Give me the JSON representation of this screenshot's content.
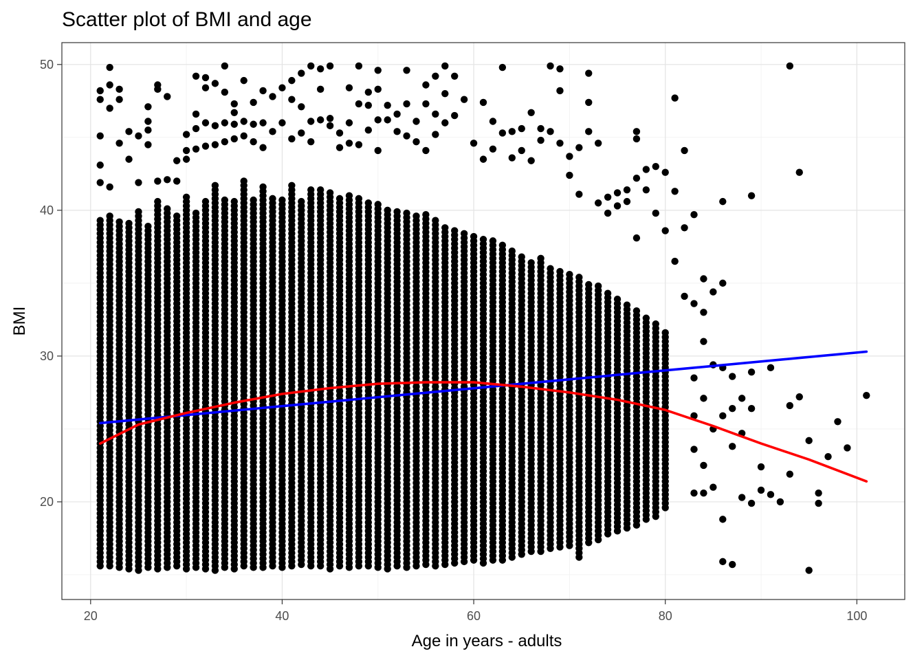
{
  "chart_data": {
    "type": "scatter",
    "title": "Scatter plot of BMI and age",
    "xlabel": "Age in years - adults",
    "ylabel": "BMI",
    "xlim": [
      17,
      105
    ],
    "ylim": [
      13.3,
      51.5
    ],
    "xticks": [
      20,
      40,
      60,
      80,
      100
    ],
    "yticks": [
      20,
      30,
      40,
      50
    ],
    "grid": true,
    "legend": "none",
    "point_color": "#000000",
    "dense_region": {
      "x_values": [
        21,
        22,
        23,
        24,
        25,
        26,
        27,
        28,
        29,
        30,
        31,
        32,
        33,
        34,
        35,
        36,
        37,
        38,
        39,
        40,
        41,
        42,
        43,
        44,
        45,
        46,
        47,
        48,
        49,
        50,
        51,
        52,
        53,
        54,
        55,
        56,
        57,
        58,
        59,
        60,
        61,
        62,
        63,
        64,
        65,
        66,
        67,
        68,
        69,
        70,
        71,
        72,
        73,
        74,
        75,
        76,
        77,
        78,
        79,
        80
      ],
      "y_low": [
        15.6,
        15.6,
        15.5,
        15.4,
        15.3,
        15.5,
        15.4,
        15.5,
        15.6,
        15.4,
        15.5,
        15.4,
        15.3,
        15.5,
        15.4,
        15.6,
        15.5,
        15.5,
        15.6,
        15.5,
        15.6,
        15.7,
        15.6,
        15.6,
        15.4,
        15.6,
        15.5,
        15.6,
        15.6,
        15.5,
        15.4,
        15.6,
        15.5,
        15.6,
        15.7,
        15.6,
        15.7,
        15.8,
        15.9,
        16.0,
        15.8,
        16.0,
        16.0,
        16.2,
        16.4,
        16.6,
        16.6,
        16.8,
        16.9,
        17.0,
        16.2,
        17.2,
        17.4,
        17.8,
        18.0,
        18.2,
        18.4,
        18.8,
        19.0,
        19.6
      ],
      "y_high": [
        39.5,
        39.6,
        39.2,
        39.2,
        40.0,
        39.0,
        40.6,
        40.3,
        39.7,
        41.0,
        40.0,
        40.6,
        41.8,
        40.8,
        40.8,
        42.0,
        40.8,
        41.6,
        41.0,
        40.8,
        41.8,
        40.8,
        41.6,
        41.4,
        41.2,
        41.0,
        41.2,
        40.8,
        40.6,
        40.4,
        40.2,
        40.0,
        39.8,
        39.6,
        39.8,
        39.4,
        39.0,
        38.8,
        38.6,
        38.4,
        38.2,
        38.0,
        37.8,
        37.4,
        37.0,
        36.6,
        36.8,
        36.2,
        36.0,
        35.8,
        35.4,
        35.0,
        34.8,
        34.4,
        34.0,
        33.6,
        33.2,
        32.8,
        32.2,
        31.6
      ],
      "y_step": 0.3
    },
    "points": [
      [
        21,
        48.2
      ],
      [
        21,
        47.6
      ],
      [
        21,
        45.1
      ],
      [
        21,
        43.1
      ],
      [
        21,
        41.9
      ],
      [
        22,
        49.8
      ],
      [
        22,
        48.6
      ],
      [
        22,
        47.0
      ],
      [
        22,
        41.6
      ],
      [
        23,
        48.3
      ],
      [
        23,
        47.6
      ],
      [
        23,
        44.6
      ],
      [
        24,
        45.4
      ],
      [
        24,
        43.5
      ],
      [
        25,
        45.1
      ],
      [
        25,
        41.9
      ],
      [
        26,
        47.1
      ],
      [
        26,
        46.1
      ],
      [
        26,
        45.5
      ],
      [
        26,
        44.5
      ],
      [
        27,
        48.6
      ],
      [
        27,
        48.3
      ],
      [
        27,
        42.0
      ],
      [
        28,
        47.8
      ],
      [
        28,
        42.1
      ],
      [
        29,
        43.4
      ],
      [
        29,
        42.0
      ],
      [
        30,
        45.2
      ],
      [
        30,
        44.1
      ],
      [
        30,
        43.5
      ],
      [
        31,
        49.2
      ],
      [
        31,
        46.6
      ],
      [
        31,
        45.6
      ],
      [
        31,
        44.2
      ],
      [
        32,
        49.1
      ],
      [
        32,
        48.4
      ],
      [
        32,
        46.0
      ],
      [
        32,
        44.4
      ],
      [
        33,
        48.7
      ],
      [
        33,
        45.8
      ],
      [
        33,
        44.5
      ],
      [
        34,
        49.9
      ],
      [
        34,
        48.1
      ],
      [
        34,
        46.0
      ],
      [
        34,
        44.7
      ],
      [
        35,
        47.3
      ],
      [
        35,
        46.7
      ],
      [
        35,
        45.9
      ],
      [
        35,
        44.9
      ],
      [
        36,
        48.9
      ],
      [
        36,
        46.1
      ],
      [
        36,
        45.1
      ],
      [
        37,
        47.4
      ],
      [
        37,
        45.9
      ],
      [
        37,
        44.7
      ],
      [
        38,
        48.2
      ],
      [
        38,
        46.0
      ],
      [
        38,
        44.3
      ],
      [
        39,
        47.8
      ],
      [
        39,
        45.4
      ],
      [
        40,
        48.4
      ],
      [
        40,
        46.0
      ],
      [
        41,
        48.9
      ],
      [
        41,
        47.6
      ],
      [
        41,
        44.9
      ],
      [
        42,
        49.4
      ],
      [
        42,
        47.1
      ],
      [
        42,
        45.3
      ],
      [
        43,
        49.9
      ],
      [
        43,
        46.1
      ],
      [
        43,
        44.7
      ],
      [
        44,
        49.7
      ],
      [
        44,
        48.3
      ],
      [
        44,
        46.2
      ],
      [
        45,
        49.9
      ],
      [
        45,
        46.3
      ],
      [
        45,
        45.8
      ],
      [
        46,
        45.3
      ],
      [
        46,
        44.3
      ],
      [
        47,
        48.4
      ],
      [
        47,
        46.0
      ],
      [
        47,
        44.6
      ],
      [
        48,
        49.9
      ],
      [
        48,
        47.3
      ],
      [
        48,
        44.5
      ],
      [
        49,
        48.1
      ],
      [
        49,
        47.2
      ],
      [
        49,
        45.5
      ],
      [
        50,
        49.6
      ],
      [
        50,
        48.3
      ],
      [
        50,
        46.2
      ],
      [
        50,
        44.1
      ],
      [
        51,
        47.2
      ],
      [
        51,
        46.2
      ],
      [
        52,
        46.6
      ],
      [
        52,
        45.4
      ],
      [
        53,
        49.6
      ],
      [
        53,
        47.3
      ],
      [
        53,
        45.1
      ],
      [
        54,
        46.1
      ],
      [
        54,
        44.7
      ],
      [
        55,
        48.6
      ],
      [
        55,
        47.3
      ],
      [
        55,
        44.1
      ],
      [
        56,
        49.2
      ],
      [
        56,
        46.6
      ],
      [
        56,
        45.2
      ],
      [
        57,
        49.9
      ],
      [
        57,
        48.0
      ],
      [
        57,
        46.0
      ],
      [
        58,
        49.2
      ],
      [
        58,
        46.5
      ],
      [
        59,
        47.6
      ],
      [
        60,
        44.6
      ],
      [
        61,
        47.4
      ],
      [
        61,
        43.5
      ],
      [
        62,
        46.1
      ],
      [
        62,
        44.2
      ],
      [
        63,
        49.8
      ],
      [
        63,
        45.3
      ],
      [
        64,
        45.4
      ],
      [
        64,
        43.6
      ],
      [
        65,
        45.6
      ],
      [
        65,
        44.1
      ],
      [
        66,
        46.7
      ],
      [
        66,
        43.4
      ],
      [
        67,
        45.6
      ],
      [
        67,
        44.8
      ],
      [
        68,
        49.9
      ],
      [
        68,
        45.4
      ],
      [
        69,
        49.7
      ],
      [
        69,
        48.2
      ],
      [
        69,
        44.6
      ],
      [
        70,
        43.7
      ],
      [
        70,
        42.4
      ],
      [
        71,
        44.3
      ],
      [
        71,
        41.1
      ],
      [
        72,
        49.4
      ],
      [
        72,
        47.4
      ],
      [
        72,
        45.4
      ],
      [
        73,
        44.6
      ],
      [
        73,
        40.5
      ],
      [
        74,
        40.9
      ],
      [
        74,
        39.8
      ],
      [
        75,
        41.2
      ],
      [
        75,
        40.3
      ],
      [
        76,
        41.4
      ],
      [
        76,
        40.6
      ],
      [
        77,
        45.4
      ],
      [
        77,
        44.9
      ],
      [
        77,
        42.2
      ],
      [
        77,
        38.1
      ],
      [
        78,
        42.8
      ],
      [
        78,
        41.4
      ],
      [
        79,
        43.0
      ],
      [
        79,
        39.8
      ],
      [
        80,
        42.6
      ],
      [
        80,
        38.6
      ],
      [
        81,
        47.7
      ],
      [
        81,
        41.3
      ],
      [
        81,
        36.5
      ],
      [
        82,
        44.1
      ],
      [
        82,
        38.8
      ],
      [
        82,
        34.1
      ],
      [
        83,
        39.7
      ],
      [
        83,
        33.6
      ],
      [
        83,
        28.5
      ],
      [
        83,
        25.9
      ],
      [
        83,
        23.6
      ],
      [
        83,
        20.6
      ],
      [
        84,
        35.3
      ],
      [
        84,
        33.0
      ],
      [
        84,
        31.0
      ],
      [
        84,
        27.1
      ],
      [
        84,
        22.5
      ],
      [
        84,
        20.6
      ],
      [
        85,
        34.4
      ],
      [
        85,
        29.4
      ],
      [
        85,
        25.0
      ],
      [
        85,
        21.0
      ],
      [
        86,
        40.6
      ],
      [
        86,
        35.0
      ],
      [
        86,
        29.2
      ],
      [
        86,
        25.9
      ],
      [
        86,
        18.8
      ],
      [
        86,
        15.9
      ],
      [
        87,
        28.6
      ],
      [
        87,
        26.4
      ],
      [
        87,
        23.8
      ],
      [
        87,
        15.7
      ],
      [
        88,
        27.1
      ],
      [
        88,
        24.7
      ],
      [
        88,
        20.3
      ],
      [
        89,
        41.0
      ],
      [
        89,
        28.9
      ],
      [
        89,
        26.4
      ],
      [
        89,
        19.9
      ],
      [
        90,
        22.4
      ],
      [
        90,
        20.8
      ],
      [
        91,
        29.2
      ],
      [
        91,
        20.5
      ],
      [
        92,
        20.0
      ],
      [
        93,
        49.9
      ],
      [
        93,
        26.6
      ],
      [
        93,
        21.9
      ],
      [
        94,
        42.6
      ],
      [
        94,
        27.2
      ],
      [
        95,
        24.2
      ],
      [
        95,
        15.3
      ],
      [
        96,
        20.6
      ],
      [
        96,
        19.9
      ],
      [
        97,
        23.1
      ],
      [
        98,
        25.5
      ],
      [
        99,
        23.7
      ],
      [
        101,
        27.3
      ]
    ],
    "series": [
      {
        "type": "line",
        "color": "#0000ff",
        "x": [
          21,
          101
        ],
        "y": [
          25.4,
          30.3
        ]
      },
      {
        "type": "line",
        "color": "#ff0000",
        "x": [
          21,
          25,
          30,
          35,
          40,
          45,
          50,
          55,
          60,
          65,
          70,
          75,
          80,
          85,
          90,
          95,
          101
        ],
        "y": [
          24.0,
          25.3,
          26.1,
          26.8,
          27.4,
          27.8,
          28.1,
          28.2,
          28.2,
          27.9,
          27.5,
          27.0,
          26.3,
          25.2,
          24.0,
          22.9,
          21.4
        ]
      }
    ]
  }
}
